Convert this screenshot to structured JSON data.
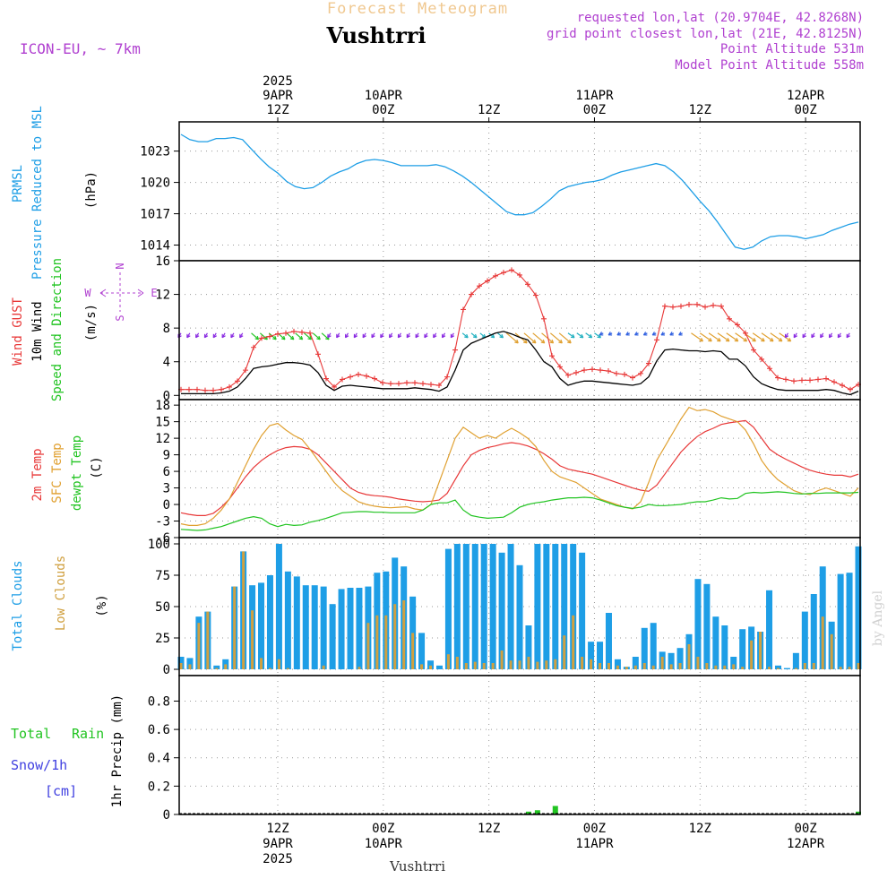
{
  "header": {
    "product": "Forecast Meteogram",
    "location": "Vushtrri",
    "model": "ICON-EU, ~ 7km",
    "requested": "requested lon,lat (20.9704E, 42.8268N)",
    "gridpoint": "grid point closest lon,lat (21E, 42.8125N)",
    "point_alt": "Point Altitude 531m",
    "model_alt": "Model Point Altitude 558m",
    "credit": "by Angel",
    "footer_location": "Vushtrri"
  },
  "colors": {
    "pressure": "#1e9ee6",
    "gust": "#e83838",
    "wind": "#000000",
    "temp2m": "#e83838",
    "sfc": "#e0a030",
    "dewpt": "#22c422",
    "total_clouds": "#1e9ee6",
    "low_clouds": "#d0a040",
    "rain": "#22c422",
    "snow": "#4040e0",
    "meta": "#b040d0",
    "wind_arrow_purple": "#8a2be2",
    "wind_arrow_green": "#22c422",
    "wind_arrow_orange": "#e0a030"
  },
  "time_axis": {
    "top_labels": [
      {
        "t": 11,
        "lines": [
          "2025",
          "9APR",
          "12Z"
        ]
      },
      {
        "t": 23,
        "lines": [
          "10APR",
          "00Z"
        ]
      },
      {
        "t": 35,
        "lines": [
          "12Z"
        ]
      },
      {
        "t": 47,
        "lines": [
          "11APR",
          "00Z"
        ]
      },
      {
        "t": 59,
        "lines": [
          "12Z"
        ]
      },
      {
        "t": 71,
        "lines": [
          "12APR",
          "00Z"
        ]
      }
    ],
    "bottom_labels": [
      {
        "t": 11,
        "lines": [
          "12Z",
          "9APR",
          "2025"
        ]
      },
      {
        "t": 23,
        "lines": [
          "00Z",
          "10APR"
        ]
      },
      {
        "t": 35,
        "lines": [
          "12Z"
        ]
      },
      {
        "t": 47,
        "lines": [
          "00Z",
          "11APR"
        ]
      },
      {
        "t": 59,
        "lines": [
          "12Z"
        ]
      },
      {
        "t": 71,
        "lines": [
          "00Z",
          "12APR"
        ]
      }
    ],
    "tmin": 0,
    "tmax": 77
  },
  "chart_data": [
    {
      "type": "line",
      "panel": "pressure",
      "ylabel": [
        "PRMSL",
        "Pressure Reduced to MSL",
        "(hPa)"
      ],
      "yticks": [
        1014,
        1017,
        1020,
        1023
      ],
      "ylim": [
        1012.5,
        1025.8
      ],
      "series": [
        {
          "name": "PRMSL",
          "values": [
            1024.6,
            1024.1,
            1023.9,
            1023.9,
            1024.2,
            1024.2,
            1024.3,
            1024.1,
            1023.2,
            1022.3,
            1021.5,
            1020.9,
            1020.1,
            1019.6,
            1019.4,
            1019.5,
            1020.0,
            1020.6,
            1021.0,
            1021.3,
            1021.8,
            1022.1,
            1022.2,
            1022.1,
            1021.9,
            1021.6,
            1021.6,
            1021.6,
            1021.6,
            1021.7,
            1021.5,
            1021.1,
            1020.6,
            1020.0,
            1019.3,
            1018.6,
            1017.9,
            1017.2,
            1016.9,
            1016.9,
            1017.1,
            1017.7,
            1018.4,
            1019.2,
            1019.6,
            1019.8,
            1020.0,
            1020.1,
            1020.3,
            1020.7,
            1021.0,
            1021.2,
            1021.4,
            1021.6,
            1021.8,
            1021.6,
            1021.0,
            1020.2,
            1019.2,
            1018.2,
            1017.3,
            1016.2,
            1015.0,
            1013.8,
            1013.6,
            1013.8,
            1014.4,
            1014.8,
            1014.9,
            1014.9,
            1014.8,
            1014.6,
            1014.8,
            1015.0,
            1015.4,
            1015.7,
            1016.0,
            1016.2
          ]
        }
      ]
    },
    {
      "type": "line",
      "panel": "wind",
      "ylabel": [
        "Wind GUST",
        "10m Wind",
        "Speed and Direction",
        "(m/s)"
      ],
      "compass": {
        "n": "N",
        "s": "S",
        "e": "E",
        "w": "W"
      },
      "yticks": [
        0,
        4,
        8,
        12,
        16
      ],
      "ylim": [
        -0.5,
        16
      ],
      "series": [
        {
          "name": "Wind GUST",
          "values": [
            0.7,
            0.7,
            0.7,
            0.6,
            0.6,
            0.7,
            1.0,
            1.7,
            3.0,
            5.7,
            6.8,
            7.0,
            7.3,
            7.4,
            7.6,
            7.5,
            7.4,
            4.9,
            2.0,
            1.0,
            1.9,
            2.2,
            2.5,
            2.3,
            2.0,
            1.5,
            1.4,
            1.4,
            1.5,
            1.5,
            1.4,
            1.3,
            1.2,
            2.2,
            5.4,
            10.2,
            12.0,
            13.0,
            13.6,
            14.2,
            14.6,
            14.9,
            14.3,
            13.2,
            11.9,
            9.1,
            4.7,
            3.4,
            2.4,
            2.7,
            3.0,
            3.1,
            3.0,
            2.9,
            2.6,
            2.5,
            2.1,
            2.6,
            3.8,
            6.6,
            10.6,
            10.5,
            10.6,
            10.8,
            10.8,
            10.5,
            10.7,
            10.6,
            9.1,
            8.4,
            7.4,
            5.4,
            4.3,
            3.2,
            2.1,
            1.9,
            1.7,
            1.8,
            1.8,
            1.9,
            2.0,
            1.6,
            1.2,
            0.7,
            1.3
          ]
        },
        {
          "name": "10m Wind",
          "values": [
            0.2,
            0.2,
            0.2,
            0.2,
            0.2,
            0.3,
            0.5,
            1.0,
            2.0,
            3.2,
            3.4,
            3.5,
            3.7,
            3.9,
            3.9,
            3.8,
            3.6,
            2.7,
            1.2,
            0.6,
            1.1,
            1.2,
            1.1,
            1.0,
            0.9,
            0.8,
            0.8,
            0.8,
            0.8,
            0.9,
            0.8,
            0.7,
            0.5,
            1.0,
            3.0,
            5.4,
            6.2,
            6.6,
            7.0,
            7.4,
            7.6,
            7.3,
            6.9,
            6.6,
            5.4,
            4.0,
            3.4,
            2.0,
            1.2,
            1.5,
            1.7,
            1.7,
            1.6,
            1.5,
            1.4,
            1.3,
            1.2,
            1.4,
            2.2,
            4.1,
            5.4,
            5.5,
            5.4,
            5.3,
            5.3,
            5.2,
            5.3,
            5.2,
            4.3,
            4.3,
            3.5,
            2.2,
            1.4,
            1.0,
            0.7,
            0.6,
            0.6,
            0.6,
            0.6,
            0.6,
            0.7,
            0.6,
            0.3,
            0.1,
            0.5
          ]
        }
      ]
    },
    {
      "type": "line",
      "panel": "temperature",
      "ylabel": [
        "2m Temp",
        "SFC Temp",
        "dewpt Temp",
        "(C)"
      ],
      "yticks": [
        -6,
        -3,
        0,
        3,
        6,
        9,
        12,
        15,
        18
      ],
      "ylim": [
        -6,
        19
      ],
      "series": [
        {
          "name": "2m Temp",
          "values": [
            -1.5,
            -1.8,
            -2.0,
            -2.0,
            -1.6,
            -0.5,
            1.0,
            3.0,
            5.0,
            6.7,
            8.0,
            9.0,
            9.8,
            10.3,
            10.5,
            10.4,
            10.0,
            9.0,
            7.5,
            6.0,
            4.5,
            3.0,
            2.2,
            1.8,
            1.6,
            1.5,
            1.3,
            1.0,
            0.8,
            0.6,
            0.5,
            0.6,
            0.8,
            2.0,
            4.5,
            7.0,
            9.0,
            9.8,
            10.3,
            10.6,
            11.0,
            11.2,
            11.0,
            10.6,
            10.0,
            9.2,
            8.2,
            7.0,
            6.4,
            6.1,
            5.8,
            5.5,
            5.0,
            4.5,
            4.0,
            3.5,
            3.0,
            2.6,
            2.4,
            3.5,
            5.5,
            7.5,
            9.5,
            11.0,
            12.3,
            13.2,
            13.8,
            14.5,
            14.8,
            15.0,
            15.2,
            14.0,
            12.0,
            10.0,
            9.0,
            8.2,
            7.5,
            6.8,
            6.2,
            5.8,
            5.5,
            5.3,
            5.3,
            5.0,
            5.5
          ]
        },
        {
          "name": "SFC Temp",
          "values": [
            -3.5,
            -3.8,
            -3.8,
            -3.5,
            -2.5,
            -1.0,
            1.0,
            4.0,
            7.0,
            10.0,
            12.5,
            14.3,
            14.7,
            13.5,
            12.5,
            11.8,
            10.0,
            8.0,
            6.0,
            4.0,
            2.5,
            1.5,
            0.5,
            0.0,
            -0.3,
            -0.5,
            -0.6,
            -0.5,
            -0.4,
            -0.8,
            -1.0,
            0.0,
            4.0,
            8.0,
            12.0,
            14.0,
            13.0,
            12.0,
            12.5,
            12.0,
            13.0,
            13.8,
            13.0,
            12.0,
            10.5,
            8.0,
            6.0,
            5.0,
            4.5,
            4.0,
            3.0,
            2.0,
            1.0,
            0.5,
            0.0,
            -0.5,
            -0.8,
            0.5,
            4.0,
            8.0,
            10.5,
            13.0,
            15.5,
            17.6,
            17.0,
            17.2,
            16.8,
            16.0,
            15.5,
            15.0,
            13.5,
            11.0,
            8.0,
            6.0,
            4.5,
            3.5,
            2.5,
            2.0,
            1.8,
            2.5,
            3.0,
            2.5,
            2.0,
            1.5,
            3.0
          ]
        },
        {
          "name": "dewpt Temp",
          "values": [
            -4.5,
            -4.6,
            -4.7,
            -4.6,
            -4.3,
            -4.0,
            -3.5,
            -3.0,
            -2.5,
            -2.2,
            -2.5,
            -3.5,
            -4.0,
            -3.6,
            -3.8,
            -3.7,
            -3.2,
            -2.9,
            -2.5,
            -2.0,
            -1.5,
            -1.4,
            -1.3,
            -1.3,
            -1.4,
            -1.4,
            -1.5,
            -1.5,
            -1.5,
            -1.5,
            -1.0,
            0.0,
            0.3,
            0.3,
            0.8,
            -1.0,
            -2.0,
            -2.3,
            -2.5,
            -2.4,
            -2.3,
            -1.5,
            -0.5,
            0.0,
            0.3,
            0.5,
            0.8,
            1.0,
            1.2,
            1.2,
            1.3,
            1.2,
            0.8,
            0.3,
            -0.2,
            -0.5,
            -0.7,
            -0.5,
            0.0,
            -0.2,
            -0.2,
            -0.1,
            0.0,
            0.3,
            0.5,
            0.5,
            0.8,
            1.2,
            1.0,
            1.1,
            2.0,
            2.2,
            2.1,
            2.2,
            2.3,
            2.2,
            2.0,
            1.9,
            2.0,
            2.0,
            2.1,
            2.1,
            2.1,
            2.1,
            2.2
          ]
        }
      ]
    },
    {
      "type": "bar",
      "panel": "clouds",
      "ylabel": [
        "Total Clouds",
        "Low Clouds",
        "(%)"
      ],
      "yticks": [
        0,
        25,
        50,
        75,
        100
      ],
      "ylim": [
        -5,
        105
      ],
      "series": [
        {
          "name": "Total Clouds",
          "values": [
            10,
            9,
            42,
            46,
            3,
            8,
            66,
            94,
            67,
            69,
            75,
            100,
            78,
            74,
            67,
            67,
            66,
            52,
            64,
            65,
            65,
            66,
            77,
            78,
            89,
            82,
            58,
            29,
            7,
            3,
            96,
            100,
            100,
            100,
            100,
            100,
            93,
            100,
            83,
            35,
            100,
            100,
            100,
            100,
            100,
            93,
            22,
            22,
            45,
            8,
            2,
            10,
            33,
            37,
            14,
            13,
            17,
            28,
            72,
            68,
            42,
            35,
            10,
            32,
            34,
            30,
            63,
            3,
            1,
            13,
            46,
            60,
            82,
            38,
            76,
            77,
            98
          ]
        },
        {
          "name": "Low Clouds",
          "values": [
            5,
            4,
            37,
            46,
            1,
            4,
            66,
            94,
            47,
            9,
            1,
            8,
            1,
            0,
            0,
            0,
            3,
            0,
            0,
            0,
            2,
            37,
            43,
            43,
            52,
            55,
            29,
            4,
            3,
            0,
            12,
            10,
            5,
            6,
            5,
            5,
            15,
            7,
            7,
            10,
            6,
            7,
            8,
            27,
            43,
            10,
            8,
            5,
            5,
            3,
            2,
            3,
            5,
            3,
            10,
            4,
            5,
            20,
            10,
            5,
            3,
            3,
            4,
            2,
            23,
            30,
            2,
            1,
            0,
            1,
            5,
            5,
            42,
            28,
            2,
            2,
            5
          ]
        }
      ]
    },
    {
      "type": "bar",
      "panel": "precip",
      "ylabel": [
        "1hr Precip (mm)"
      ],
      "legend": {
        "rain_total": "Total",
        "rain_word": "Rain",
        "snow": "Snow/1h",
        "snow_unit": "[cm]"
      },
      "yticks": [
        0,
        0.2,
        0.4,
        0.6,
        0.8
      ],
      "ylim": [
        0,
        0.98
      ],
      "series": [
        {
          "name": "Rain",
          "values": [
            0,
            0,
            0,
            0,
            0,
            0,
            0,
            0,
            0,
            0,
            0,
            0,
            0,
            0,
            0,
            0,
            0,
            0,
            0,
            0,
            0,
            0,
            0,
            0,
            0,
            0,
            0,
            0,
            0,
            0,
            0,
            0,
            0,
            0,
            0,
            0,
            0,
            0,
            0,
            0.02,
            0.03,
            0,
            0.06,
            0,
            0,
            0,
            0,
            0,
            0,
            0,
            0,
            0,
            0,
            0,
            0,
            0,
            0,
            0,
            0,
            0,
            0,
            0,
            0,
            0,
            0,
            0,
            0,
            0,
            0,
            0,
            0,
            0,
            0,
            0,
            0,
            0,
            0.02
          ]
        }
      ]
    }
  ],
  "wind_arrows": {
    "segments": [
      {
        "from": 0,
        "to": 7,
        "color": "purple",
        "dx": -3,
        "dy": 5
      },
      {
        "from": 8,
        "to": 16,
        "color": "green",
        "dx": 8,
        "dy": 7
      },
      {
        "from": 17,
        "to": 31,
        "color": "purple",
        "dx": -3,
        "dy": 5
      },
      {
        "from": 32,
        "to": 36,
        "color": "teal",
        "dx": 6,
        "dy": 5
      },
      {
        "from": 37,
        "to": 43,
        "color": "orange",
        "dx": 13,
        "dy": 11
      },
      {
        "from": 44,
        "to": 47,
        "color": "teal",
        "dx": 7,
        "dy": 5
      },
      {
        "from": 48,
        "to": 57,
        "color": "blue",
        "dx": -4,
        "dy": 2
      },
      {
        "from": 58,
        "to": 68,
        "color": "orange",
        "dx": 13,
        "dy": 9
      },
      {
        "from": 69,
        "to": 76,
        "color": "purple",
        "dx": -3,
        "dy": 5
      }
    ]
  }
}
